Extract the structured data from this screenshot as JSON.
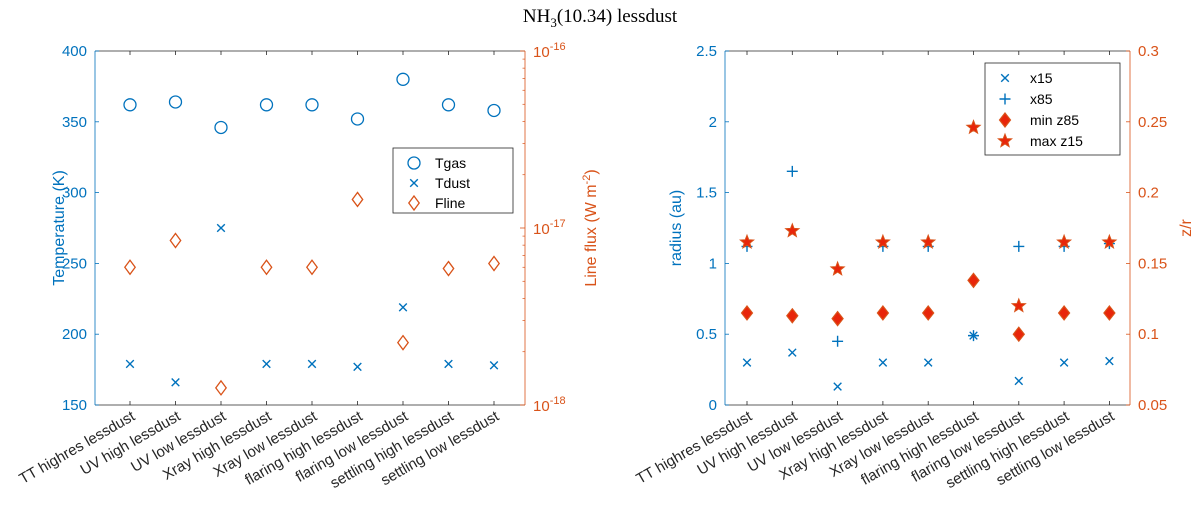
{
  "title_main": "NH",
  "title_sub": "3",
  "title_rest": "(10.34) lessdust",
  "colors": {
    "blue": "#0072BD",
    "orange": "#D95319",
    "red": "#E8250A"
  },
  "chart_data": [
    {
      "type": "scatter",
      "categories": [
        "TT highres lessdust",
        "UV high lessdust",
        "UV low lessdust",
        "Xray high lessdust",
        "Xray low lessdust",
        "flaring high lessdust",
        "flaring low lessdust",
        "settling high lessdust",
        "settling low lessdust"
      ],
      "ylabel_left": "Temperature (K)",
      "ylim_left": [
        150,
        400
      ],
      "yticks_left": [
        "150",
        "200",
        "250",
        "300",
        "350",
        "400"
      ],
      "ylabel_right": "Line flux (W m",
      "ylabel_right_sup": "-2",
      "ylabel_right_end": ")",
      "ylim_right_log10": [
        -18,
        -16
      ],
      "yticks_right": [
        {
          "base": "10",
          "exp": "-18"
        },
        {
          "base": "10",
          "exp": "-17"
        },
        {
          "base": "10",
          "exp": "-16"
        }
      ],
      "series": [
        {
          "name": "Tgas",
          "axis": "left",
          "marker": "circle",
          "values": [
            362,
            364,
            346,
            362,
            362,
            352,
            380,
            362,
            358
          ]
        },
        {
          "name": "Tdust",
          "axis": "left",
          "marker": "x",
          "values": [
            179,
            166,
            275,
            179,
            179,
            177,
            219,
            179,
            178
          ]
        },
        {
          "name": "Fline",
          "axis": "right",
          "marker": "diamond",
          "values": [
            6e-18,
            8.5e-18,
            1.25e-18,
            6e-18,
            6e-18,
            1.45e-17,
            2.25e-18,
            5.9e-18,
            6.3e-18
          ]
        }
      ],
      "legend": [
        "Tgas",
        "Tdust",
        "Fline"
      ],
      "legend_position": "right"
    },
    {
      "type": "scatter",
      "categories": [
        "TT highres lessdust",
        "UV high lessdust",
        "UV low lessdust",
        "Xray high lessdust",
        "Xray low lessdust",
        "flaring high lessdust",
        "flaring low lessdust",
        "settling high lessdust",
        "settling low lessdust"
      ],
      "ylabel_left": "radius (au)",
      "ylim_left": [
        0,
        2.5
      ],
      "yticks_left": [
        "0",
        "0.5",
        "1",
        "1.5",
        "2",
        "2.5"
      ],
      "ylabel_right": "z/r",
      "ylim_right": [
        0.05,
        0.3
      ],
      "yticks_right": [
        "0.05",
        "0.1",
        "0.15",
        "0.2",
        "0.25",
        "0.3"
      ],
      "series": [
        {
          "name": "x15",
          "axis": "left",
          "marker": "x",
          "values": [
            0.3,
            0.37,
            0.13,
            0.3,
            0.3,
            0.49,
            0.17,
            0.3,
            0.31
          ]
        },
        {
          "name": "x85",
          "axis": "left",
          "marker": "plus",
          "values": [
            1.12,
            1.65,
            0.45,
            1.12,
            1.12,
            0.49,
            1.12,
            1.12,
            1.14
          ]
        },
        {
          "name": "min z85",
          "axis": "right",
          "marker": "diamond-filled",
          "values": [
            0.115,
            0.113,
            0.111,
            0.115,
            0.115,
            0.138,
            0.1,
            0.115,
            0.115
          ]
        },
        {
          "name": "max z15",
          "axis": "right",
          "marker": "star-filled",
          "values": [
            0.165,
            0.173,
            0.146,
            0.165,
            0.165,
            0.246,
            0.12,
            0.165,
            0.165
          ]
        }
      ],
      "legend": [
        "x15",
        "x85",
        "min z85",
        "max z15"
      ],
      "legend_position": "top-right"
    }
  ]
}
